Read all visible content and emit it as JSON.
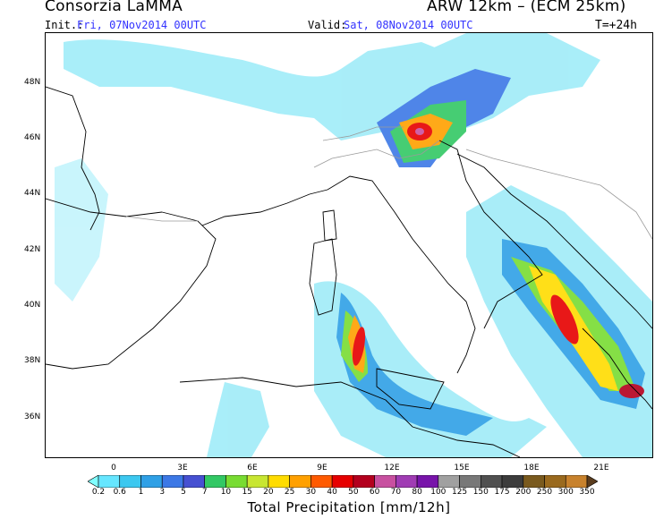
{
  "header": {
    "org": "Consorzia LaMMA",
    "model": "ARW 12km  –  (ECM 25km)",
    "init_label": "Init.:",
    "init_value": "Fri, 07Nov2014 00UTC",
    "valid_label": "Valid:",
    "valid_value": "Sat, 08Nov2014 00UTC",
    "timestep": "T=+24h"
  },
  "axes": {
    "lat_labels": [
      "48N",
      "46N",
      "44N",
      "42N",
      "40N",
      "38N",
      "36N"
    ],
    "lon_labels": [
      "0",
      "3E",
      "6E",
      "9E",
      "12E",
      "15E",
      "18E",
      "21E"
    ]
  },
  "colorbar": {
    "title": "Total Precipitation [mm/12h]",
    "levels": [
      "0.2",
      "0.6",
      "1",
      "3",
      "5",
      "7",
      "10",
      "15",
      "20",
      "25",
      "30",
      "40",
      "50",
      "60",
      "70",
      "80",
      "100",
      "125",
      "150",
      "175",
      "200",
      "250",
      "300",
      "350"
    ],
    "colors": [
      "#80ffff",
      "#66e6ff",
      "#3cc8f0",
      "#2fa0e6",
      "#3c78e6",
      "#4650d2",
      "#32c864",
      "#78dc32",
      "#c8e632",
      "#ffdc00",
      "#ffa000",
      "#ff5a00",
      "#e60000",
      "#b4001e",
      "#c850a0",
      "#a03cb4",
      "#7814aa",
      "#a0a0a0",
      "#787878",
      "#505050",
      "#3c3c3c",
      "#7a5a1e",
      "#9a6a1e",
      "#c8822d",
      "#5a3c1e"
    ]
  },
  "colors": {
    "title_blue": "#3333ff",
    "coast": "#000000",
    "border": "#9a9a9a"
  }
}
